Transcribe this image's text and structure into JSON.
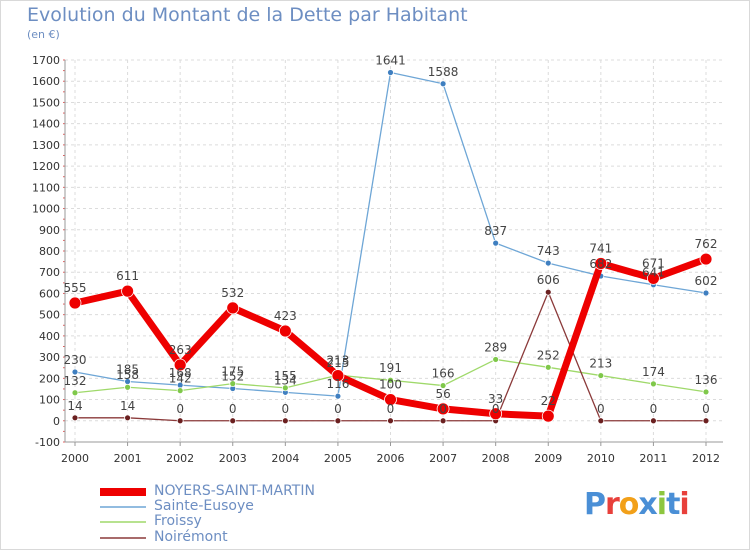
{
  "title": "Evolution du Montant de la Dette par Habitant",
  "unit_label": "(en €)",
  "logo": {
    "text": "Proxiti",
    "letter_colors": [
      "#4a8fd6",
      "#e8403b",
      "#f2a019",
      "#4a8fd6",
      "#8dc63f",
      "#4a8fd6",
      "#e8403b"
    ]
  },
  "chart_data": {
    "type": "line",
    "title": "Evolution du Montant de la Dette par Habitant",
    "ylabel": "(en €)",
    "xlabel": "",
    "ylim": [
      -100,
      1700
    ],
    "y_ticks": [
      -100,
      0,
      100,
      200,
      300,
      400,
      500,
      600,
      700,
      800,
      900,
      1000,
      1100,
      1200,
      1300,
      1400,
      1500,
      1600,
      1700
    ],
    "grid": true,
    "legend_position": "bottom-left",
    "x": [
      "2000",
      "2001",
      "2002",
      "2003",
      "2004",
      "2005",
      "2006",
      "2007",
      "2008",
      "2009",
      "2010",
      "2011",
      "2012"
    ],
    "series": [
      {
        "name": "Sainte-Eusoye",
        "color": "#6ea6d6",
        "point_color": "#3f7fc0",
        "line_width": 1.3,
        "point_radius": 3,
        "values": [
          230,
          185,
          168,
          152,
          134,
          116,
          1641,
          1588,
          837,
          743,
          682,
          641,
          602
        ],
        "labels": [
          "230",
          "185",
          "168",
          "152",
          "134",
          "116",
          "1641",
          "1588",
          "837",
          "743",
          "682",
          "641",
          "602"
        ]
      },
      {
        "name": "Froissy",
        "color": "#9fd96a",
        "point_color": "#7fc84a",
        "line_width": 1.3,
        "point_radius": 3,
        "values": [
          132,
          158,
          142,
          175,
          155,
          215,
          191,
          166,
          289,
          252,
          213,
          174,
          136
        ],
        "labels": [
          "132",
          "158",
          "142",
          "175",
          "155",
          "215",
          "191",
          "166",
          "289",
          "252",
          "213",
          "174",
          "136"
        ]
      },
      {
        "name": "Noirémont",
        "color": "#8b3a3a",
        "point_color": "#6b2020",
        "line_width": 1.3,
        "point_radius": 3,
        "values": [
          14,
          14,
          0,
          0,
          0,
          0,
          0,
          0,
          0,
          606,
          0,
          0,
          0
        ],
        "labels": [
          "14",
          "14",
          "0",
          "0",
          "0",
          "0",
          "0",
          "0",
          "0",
          "606",
          "0",
          "0",
          "0"
        ]
      },
      {
        "name": "NOYERS-SAINT-MARTIN",
        "color": "#ee0000",
        "point_color": "#ee0000",
        "line_width": 7,
        "point_radius": 6,
        "values": [
          555,
          611,
          263,
          532,
          423,
          213,
          100,
          56,
          33,
          22,
          741,
          671,
          762
        ],
        "labels": [
          "555",
          "611",
          "263",
          "532",
          "423",
          "213",
          "100",
          "56",
          "33",
          "22",
          "741",
          "671",
          "762"
        ]
      }
    ],
    "legend": [
      "NOYERS-SAINT-MARTIN",
      "Sainte-Eusoye",
      "Froissy",
      "Noirémont"
    ]
  }
}
